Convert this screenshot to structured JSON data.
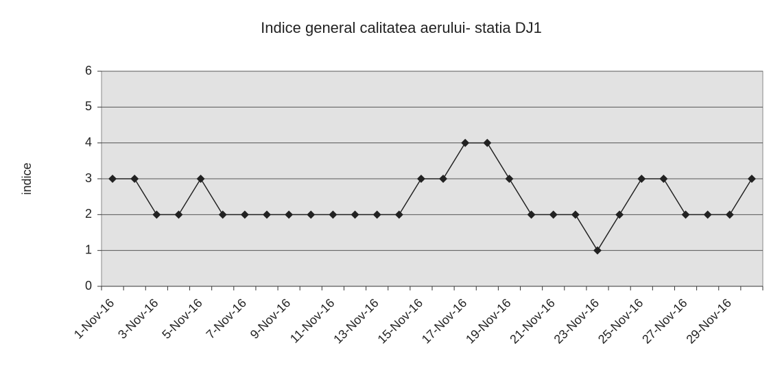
{
  "chart_data": {
    "type": "line",
    "title": "Indice general calitatea aerului-  statia DJ1",
    "y_label": "indice",
    "categories": [
      "1-Nov-16",
      null,
      "3-Nov-16",
      null,
      "5-Nov-16",
      null,
      "7-Nov-16",
      null,
      "9-Nov-16",
      null,
      "11-Nov-16",
      null,
      "13-Nov-16",
      null,
      "15-Nov-16",
      null,
      "17-Nov-16",
      null,
      "19-Nov-16",
      null,
      "21-Nov-16",
      null,
      "23-Nov-16",
      null,
      "25-Nov-16",
      null,
      "27-Nov-16",
      null,
      "29-Nov-16",
      null
    ],
    "values": [
      3,
      3,
      2,
      2,
      3,
      2,
      2,
      2,
      2,
      2,
      2,
      2,
      2,
      2,
      3,
      3,
      4,
      4,
      3,
      2,
      2,
      2,
      1,
      2,
      3,
      3,
      2,
      2,
      2,
      3
    ],
    "color": "#222222",
    "ylim": [
      0,
      6
    ],
    "yticks": [
      0,
      1,
      2,
      3,
      4,
      5,
      6
    ],
    "grid": true
  }
}
